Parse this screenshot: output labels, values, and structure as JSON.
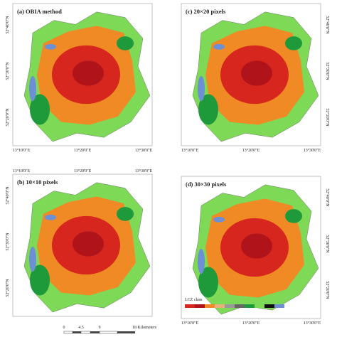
{
  "panels": [
    {
      "label": "(a) OBIA method",
      "x_labels": [
        "13°10'0\"E",
        "13°20'0\"E",
        "13°30'0\"E"
      ],
      "y_labels": [
        "52°40'0\"N",
        "52°30'0\"N",
        "52°20'0\"N"
      ]
    },
    {
      "label": "(c) 20×20 pixels",
      "x_labels": [
        "13°10'0\"E",
        "13°20'0\"E",
        "13°30'0\"E"
      ],
      "y_labels": [
        "52°40'0\"N",
        "52°30'0\"N",
        "52°20'0\"N"
      ]
    },
    {
      "label": "(b) 10×10 pixels",
      "x_labels": [
        "13°10'0\"E",
        "13°20'0\"E",
        "13°30'0\"E"
      ],
      "y_labels": [
        "52°40'0\"N",
        "52°30'0\"N",
        "52°20'0\"N"
      ]
    },
    {
      "label": "(d) 30×30 pixels",
      "x_labels": [
        "13°10'0\"E",
        "13°20'0\"E",
        "13°30'0\"E"
      ],
      "y_labels": [
        "52°40'0\"N",
        "52°30'0\"N",
        "52°20'0\"N"
      ]
    }
  ],
  "scale_bar": {
    "ticks": [
      "0",
      "4.5",
      "9",
      "18 Kilometers"
    ]
  },
  "legend": {
    "title": "LCZ class"
  }
}
